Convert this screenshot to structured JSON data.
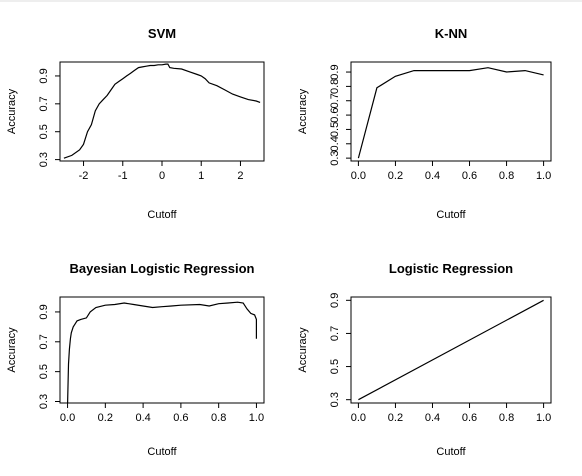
{
  "chart_data": [
    {
      "type": "line",
      "title": "SVM",
      "xlabel": "Cutoff",
      "ylabel": "Accuracy",
      "xlim": [
        -2.6,
        2.6
      ],
      "ylim": [
        0.29,
        1.0
      ],
      "xticks": [
        -2,
        -1,
        0,
        1,
        2
      ],
      "xtick_labels": [
        "-2",
        "-1",
        "0",
        "1",
        "2"
      ],
      "yticks": [
        0.3,
        0.5,
        0.7,
        0.9
      ],
      "ytick_labels": [
        "0.3",
        "0.5",
        "0.7",
        "0.9"
      ],
      "series": [
        {
          "x": [
            -2.5,
            -2.3,
            -2.1,
            -2.0,
            -1.9,
            -1.8,
            -1.7,
            -1.6,
            -1.5,
            -1.4,
            -1.3,
            -1.2,
            -1.1,
            -1.0,
            -0.9,
            -0.8,
            -0.7,
            -0.6,
            -0.5,
            -0.4,
            -0.3,
            -0.2,
            -0.1,
            0.0,
            0.1,
            0.15,
            0.2,
            0.3,
            0.5,
            0.7,
            0.9,
            1.0,
            1.1,
            1.2,
            1.4,
            1.6,
            1.8,
            2.0,
            2.2,
            2.4,
            2.5
          ],
          "values": [
            0.31,
            0.33,
            0.37,
            0.41,
            0.5,
            0.55,
            0.65,
            0.7,
            0.73,
            0.76,
            0.8,
            0.84,
            0.86,
            0.88,
            0.9,
            0.92,
            0.94,
            0.96,
            0.965,
            0.97,
            0.975,
            0.975,
            0.98,
            0.98,
            0.985,
            0.985,
            0.96,
            0.955,
            0.95,
            0.93,
            0.91,
            0.9,
            0.88,
            0.85,
            0.83,
            0.8,
            0.77,
            0.75,
            0.73,
            0.72,
            0.71
          ]
        }
      ]
    },
    {
      "type": "line",
      "title": "K-NN",
      "xlabel": "Cutoff",
      "ylabel": "Accuracy",
      "xlim": [
        -0.04,
        1.04
      ],
      "ylim": [
        0.28,
        0.97
      ],
      "xticks": [
        0.0,
        0.2,
        0.4,
        0.6,
        0.8,
        1.0
      ],
      "xtick_labels": [
        "0.0",
        "0.2",
        "0.4",
        "0.6",
        "0.8",
        "1.0"
      ],
      "yticks": [
        0.3,
        0.4,
        0.5,
        0.6,
        0.7,
        0.8,
        0.9
      ],
      "ytick_labels": [
        "0.3",
        "0.4",
        "0.5",
        "0.6",
        "0.7",
        "0.8",
        "0.9"
      ],
      "series": [
        {
          "x": [
            0.0,
            0.1,
            0.2,
            0.3,
            0.4,
            0.5,
            0.6,
            0.7,
            0.8,
            0.9,
            1.0
          ],
          "values": [
            0.3,
            0.79,
            0.87,
            0.91,
            0.91,
            0.91,
            0.91,
            0.93,
            0.9,
            0.91,
            0.88
          ]
        }
      ]
    },
    {
      "type": "line",
      "title": "Bayesian Logistic Regression",
      "xlabel": "Cutoff",
      "ylabel": "Accuracy",
      "xlim": [
        -0.04,
        1.04
      ],
      "ylim": [
        0.29,
        1.0
      ],
      "xticks": [
        0.0,
        0.2,
        0.4,
        0.6,
        0.8,
        1.0
      ],
      "xtick_labels": [
        "0.0",
        "0.2",
        "0.4",
        "0.6",
        "0.8",
        "1.0"
      ],
      "yticks": [
        0.3,
        0.5,
        0.7,
        0.9
      ],
      "ytick_labels": [
        "0.3",
        "0.5",
        "0.7",
        "0.9"
      ],
      "series": [
        {
          "x": [
            0.0,
            0.005,
            0.01,
            0.015,
            0.02,
            0.03,
            0.04,
            0.05,
            0.07,
            0.1,
            0.12,
            0.15,
            0.2,
            0.25,
            0.3,
            0.35,
            0.4,
            0.45,
            0.5,
            0.55,
            0.6,
            0.7,
            0.75,
            0.8,
            0.85,
            0.9,
            0.93,
            0.95,
            0.97,
            0.99,
            1.0,
            1.0
          ],
          "values": [
            0.29,
            0.55,
            0.65,
            0.72,
            0.76,
            0.8,
            0.82,
            0.84,
            0.85,
            0.86,
            0.9,
            0.93,
            0.945,
            0.95,
            0.96,
            0.95,
            0.94,
            0.93,
            0.935,
            0.94,
            0.945,
            0.95,
            0.94,
            0.955,
            0.96,
            0.965,
            0.96,
            0.92,
            0.89,
            0.88,
            0.85,
            0.72
          ]
        }
      ]
    },
    {
      "type": "line",
      "title": "Logistic Regression",
      "xlabel": "Cutoff",
      "ylabel": "Accuracy",
      "xlim": [
        -0.04,
        1.04
      ],
      "ylim": [
        0.28,
        0.92
      ],
      "xticks": [
        0.0,
        0.2,
        0.4,
        0.6,
        0.8,
        1.0
      ],
      "xtick_labels": [
        "0.0",
        "0.2",
        "0.4",
        "0.6",
        "0.8",
        "1.0"
      ],
      "yticks": [
        0.3,
        0.5,
        0.7,
        0.9
      ],
      "ytick_labels": [
        "0.3",
        "0.5",
        "0.7",
        "0.9"
      ],
      "series": [
        {
          "x": [
            0.0,
            1.0
          ],
          "values": [
            0.3,
            0.9
          ]
        }
      ]
    }
  ]
}
